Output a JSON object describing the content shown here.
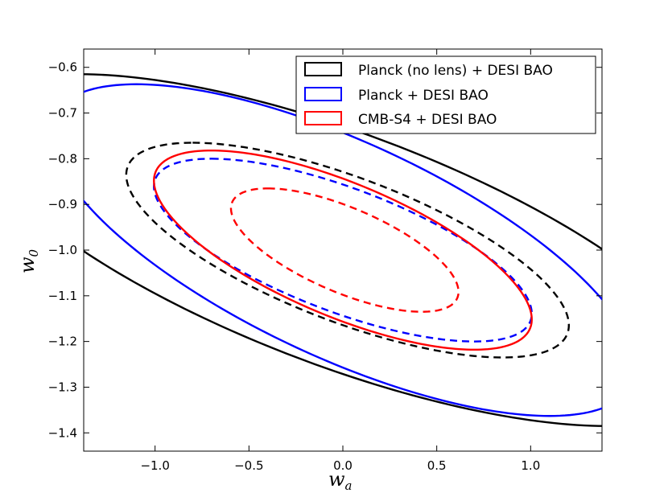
{
  "chart_data": {
    "type": "contour",
    "title": "",
    "xlabel": "w",
    "xlabel_sub": "a",
    "ylabel": "w",
    "ylabel_sub": "0",
    "xlim": [
      -1.38,
      1.38
    ],
    "ylim": [
      -1.44,
      -0.56
    ],
    "xticks": [
      -1.0,
      -0.5,
      0.0,
      0.5,
      1.0
    ],
    "xtick_labels": [
      "−1.0",
      "−0.5",
      "0.0",
      "0.5",
      "1.0"
    ],
    "yticks": [
      -0.6,
      -0.7,
      -0.8,
      -0.9,
      -1.0,
      -1.1,
      -1.2,
      -1.3,
      -1.4
    ],
    "ytick_labels": [
      "−0.6",
      "−0.7",
      "−0.8",
      "−0.9",
      "−1.0",
      "−1.1",
      "−1.2",
      "−1.3",
      "−1.4"
    ],
    "grid": false,
    "legend_position": "top-right",
    "series": [
      {
        "name": "Planck (no lens) + DESI BAO",
        "color": "#000000",
        "contours": [
          {
            "level": "outer",
            "style": "solid",
            "center": [
              0.0,
              -1.0
            ],
            "extremes": {
              "w0_max": -0.615,
              "w0_max_at_wa": -1.4,
              "w0_min": -1.385,
              "w0_min_at_wa": 1.4
            }
          },
          {
            "level": "inner",
            "style": "dashed",
            "center": [
              0.05,
              -1.0
            ],
            "extremes": {
              "w0_max": -0.765,
              "w0_max_at_wa": -0.8,
              "w0_min": -1.235,
              "w0_min_at_wa": 0.85
            }
          }
        ]
      },
      {
        "name": "Planck + DESI BAO",
        "color": "#0000ff",
        "contours": [
          {
            "level": "outer",
            "style": "solid",
            "center": [
              0.0,
              -1.0
            ],
            "extremes": {
              "w0_max": -0.637,
              "w0_max_at_wa": -1.1,
              "w0_min": -1.363,
              "w0_min_at_wa": 1.1
            }
          },
          {
            "level": "inner",
            "style": "dashed",
            "center": [
              0.0,
              -1.0
            ],
            "extremes": {
              "w0_max": -0.8,
              "w0_max_at_wa": -0.7,
              "w0_min": -1.2,
              "w0_min_at_wa": 0.7
            }
          }
        ]
      },
      {
        "name": "CMB-S4 + DESI BAO",
        "color": "#ff0000",
        "contours": [
          {
            "level": "outer",
            "style": "solid",
            "center": [
              0.0,
              -1.0
            ],
            "extremes": {
              "w0_max": -0.782,
              "w0_max_at_wa": -0.7,
              "w0_min": -1.218,
              "w0_min_at_wa": 0.7
            }
          },
          {
            "level": "inner",
            "style": "dashed",
            "center": [
              0.0,
              -1.0
            ],
            "extremes": {
              "w0_max": -0.865,
              "w0_max_at_wa": -0.4,
              "w0_min": -1.135,
              "w0_min_at_wa": 0.42
            }
          }
        ]
      }
    ]
  }
}
